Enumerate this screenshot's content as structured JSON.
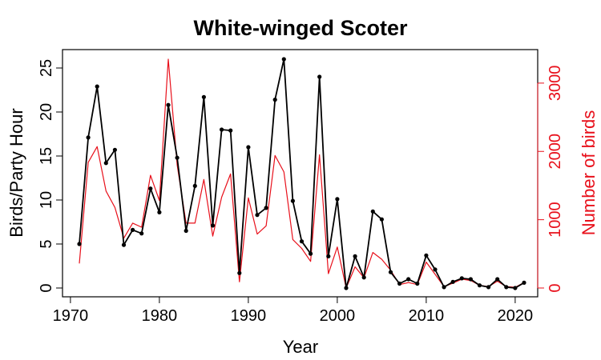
{
  "chart_data": {
    "type": "line",
    "title": "White-winged Scoter",
    "xlabel": "Year",
    "ylabel_left": "Birds/Party Hour",
    "ylabel_right": "Number of birds",
    "xlim": [
      1971,
      2021
    ],
    "ylim_left": [
      0,
      26
    ],
    "ylim_right": [
      0,
      3350
    ],
    "x_ticks": [
      1970,
      1980,
      1990,
      2000,
      2010,
      2020
    ],
    "y_ticks_left": [
      0,
      5,
      10,
      15,
      20,
      25
    ],
    "y_ticks_right": [
      0,
      1000,
      2000,
      3000
    ],
    "colors": {
      "left_series": "#000000",
      "right_series": "#e8101b"
    },
    "x": [
      1971,
      1972,
      1973,
      1974,
      1975,
      1976,
      1977,
      1978,
      1979,
      1980,
      1981,
      1982,
      1983,
      1984,
      1985,
      1986,
      1987,
      1988,
      1989,
      1990,
      1991,
      1992,
      1993,
      1994,
      1995,
      1996,
      1997,
      1998,
      1999,
      2000,
      2001,
      2002,
      2003,
      2004,
      2005,
      2006,
      2007,
      2008,
      2009,
      2010,
      2011,
      2012,
      2013,
      2014,
      2015,
      2016,
      2017,
      2018,
      2019,
      2020,
      2021
    ],
    "series": [
      {
        "axis": "left",
        "markers": true,
        "values": [
          5.0,
          17.1,
          22.9,
          14.2,
          15.7,
          4.9,
          6.6,
          6.2,
          11.3,
          8.6,
          20.8,
          14.8,
          6.5,
          11.6,
          21.7,
          7.1,
          18.0,
          17.9,
          1.7,
          16.0,
          8.3,
          9.1,
          21.4,
          26.0,
          9.9,
          5.3,
          3.9,
          24.0,
          3.6,
          10.1,
          0.0,
          3.6,
          1.2,
          8.7,
          7.8,
          1.8,
          0.5,
          1.0,
          0.5,
          3.7,
          2.1,
          0.1,
          0.7,
          1.1,
          1.0,
          0.3,
          0.1,
          1.0,
          0.1,
          0.0,
          0.6
        ]
      },
      {
        "axis": "right",
        "markers": false,
        "values": [
          360,
          1840,
          2070,
          1420,
          1180,
          730,
          950,
          890,
          1650,
          1280,
          3350,
          1800,
          950,
          950,
          1590,
          760,
          1330,
          1670,
          90,
          1320,
          790,
          910,
          1940,
          1700,
          710,
          580,
          390,
          1950,
          210,
          600,
          0,
          310,
          150,
          520,
          420,
          260,
          50,
          80,
          50,
          380,
          200,
          20,
          70,
          130,
          110,
          40,
          20,
          100,
          20,
          10,
          80
        ]
      }
    ]
  }
}
